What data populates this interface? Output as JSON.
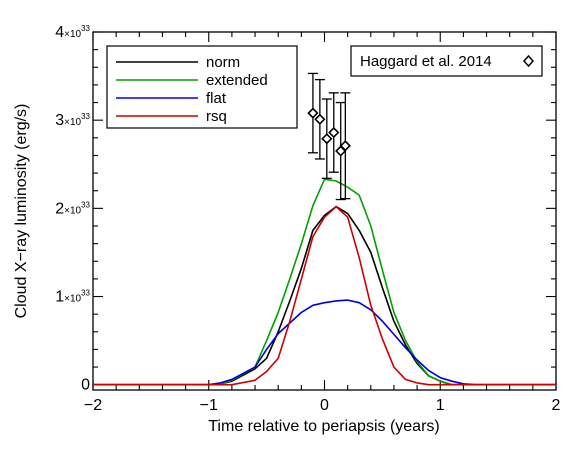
{
  "chart_data": {
    "type": "line",
    "title": "",
    "xlabel": "Time relative to periapsis (years)",
    "ylabel": "Cloud X−ray luminosity (erg/s)",
    "xlim": [
      -2,
      2
    ],
    "ylim": [
      -0.06,
      4.0
    ],
    "x_ticks": [
      {
        "value": -2,
        "label": "−2"
      },
      {
        "value": -1,
        "label": "−1"
      },
      {
        "value": 0,
        "label": "0"
      },
      {
        "value": 1,
        "label": "1"
      },
      {
        "value": 2,
        "label": "2"
      }
    ],
    "y_unit": "×10^33 erg/s",
    "y_ticks": [
      {
        "value": 0,
        "mantissa": "0",
        "base": "",
        "exponent": ""
      },
      {
        "value": 1,
        "mantissa": "1",
        "base": "×10",
        "exponent": "33"
      },
      {
        "value": 2,
        "mantissa": "2",
        "base": "×10",
        "exponent": "33"
      },
      {
        "value": 3,
        "mantissa": "3",
        "base": "×10",
        "exponent": "33"
      },
      {
        "value": 4,
        "mantissa": "4",
        "base": "×10",
        "exponent": "33"
      }
    ],
    "legend": {
      "position": "top-left"
    },
    "series": [
      {
        "name": "norm",
        "color": "#000000",
        "points": [
          [
            -2,
            0
          ],
          [
            -1.0,
            0
          ],
          [
            -0.9,
            0.01
          ],
          [
            -0.8,
            0.04
          ],
          [
            -0.6,
            0.18
          ],
          [
            -0.5,
            0.3
          ],
          [
            -0.4,
            0.6
          ],
          [
            -0.3,
            0.95
          ],
          [
            -0.2,
            1.32
          ],
          [
            -0.1,
            1.75
          ],
          [
            0,
            1.92
          ],
          [
            0.1,
            2.02
          ],
          [
            0.2,
            1.94
          ],
          [
            0.3,
            1.75
          ],
          [
            0.4,
            1.5
          ],
          [
            0.5,
            1.1
          ],
          [
            0.6,
            0.72
          ],
          [
            0.7,
            0.45
          ],
          [
            0.8,
            0.24
          ],
          [
            0.9,
            0.1
          ],
          [
            1.0,
            0.04
          ],
          [
            1.1,
            0
          ],
          [
            2,
            0
          ]
        ]
      },
      {
        "name": "extended",
        "color": "#00a000",
        "points": [
          [
            -2,
            0
          ],
          [
            -1.0,
            0
          ],
          [
            -0.9,
            0.01
          ],
          [
            -0.8,
            0.05
          ],
          [
            -0.6,
            0.2
          ],
          [
            -0.5,
            0.5
          ],
          [
            -0.4,
            0.82
          ],
          [
            -0.3,
            1.2
          ],
          [
            -0.2,
            1.6
          ],
          [
            -0.1,
            2.03
          ],
          [
            0,
            2.33
          ],
          [
            0.1,
            2.31
          ],
          [
            0.2,
            2.24
          ],
          [
            0.3,
            2.15
          ],
          [
            0.4,
            1.8
          ],
          [
            0.5,
            1.3
          ],
          [
            0.6,
            0.82
          ],
          [
            0.7,
            0.5
          ],
          [
            0.8,
            0.26
          ],
          [
            0.9,
            0.1
          ],
          [
            1.0,
            0.04
          ],
          [
            1.1,
            0
          ],
          [
            2,
            0
          ]
        ]
      },
      {
        "name": "flat",
        "color": "#0000dd",
        "points": [
          [
            -2,
            0
          ],
          [
            -1.0,
            0
          ],
          [
            -0.9,
            0.02
          ],
          [
            -0.8,
            0.06
          ],
          [
            -0.6,
            0.2
          ],
          [
            -0.5,
            0.4
          ],
          [
            -0.4,
            0.58
          ],
          [
            -0.3,
            0.7
          ],
          [
            -0.2,
            0.82
          ],
          [
            -0.1,
            0.9
          ],
          [
            0,
            0.93
          ],
          [
            0.1,
            0.95
          ],
          [
            0.2,
            0.96
          ],
          [
            0.3,
            0.93
          ],
          [
            0.4,
            0.85
          ],
          [
            0.5,
            0.72
          ],
          [
            0.6,
            0.57
          ],
          [
            0.7,
            0.42
          ],
          [
            0.8,
            0.28
          ],
          [
            0.9,
            0.16
          ],
          [
            1.0,
            0.08
          ],
          [
            1.1,
            0.04
          ],
          [
            1.2,
            0.01
          ],
          [
            1.3,
            0
          ],
          [
            2,
            0
          ]
        ]
      },
      {
        "name": "rsq",
        "color": "#cc0000",
        "points": [
          [
            -2,
            0
          ],
          [
            -1.0,
            0
          ],
          [
            -0.8,
            0
          ],
          [
            -0.6,
            0.05
          ],
          [
            -0.5,
            0.15
          ],
          [
            -0.4,
            0.3
          ],
          [
            -0.3,
            0.72
          ],
          [
            -0.2,
            1.2
          ],
          [
            -0.1,
            1.68
          ],
          [
            0,
            1.9
          ],
          [
            0.1,
            2.02
          ],
          [
            0.2,
            1.9
          ],
          [
            0.3,
            1.44
          ],
          [
            0.4,
            0.9
          ],
          [
            0.5,
            0.52
          ],
          [
            0.6,
            0.2
          ],
          [
            0.7,
            0.06
          ],
          [
            0.8,
            0.02
          ],
          [
            0.9,
            0
          ],
          [
            2,
            0
          ]
        ]
      }
    ],
    "observations": {
      "label": "Haggard et al. 2014",
      "marker": "diamond",
      "points": [
        {
          "x": -0.1,
          "y": 3.08,
          "err": 0.45
        },
        {
          "x": -0.04,
          "y": 3.01,
          "err": 0.45
        },
        {
          "x": 0.02,
          "y": 2.79,
          "err": 0.45
        },
        {
          "x": 0.08,
          "y": 2.86,
          "err": 0.45
        },
        {
          "x": 0.14,
          "y": 2.65,
          "err": 0.55
        },
        {
          "x": 0.18,
          "y": 2.71,
          "err": 0.6
        }
      ]
    }
  }
}
